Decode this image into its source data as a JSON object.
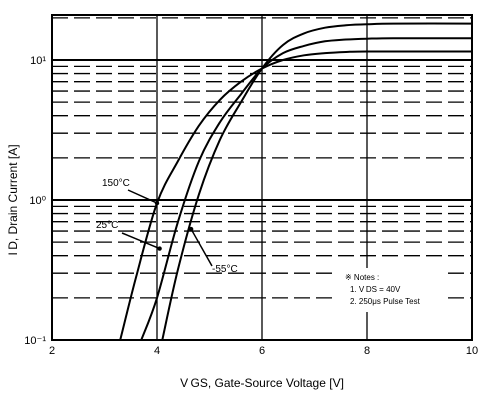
{
  "chart_data": {
    "type": "line",
    "xlabel": "V GS, Gate-Source Voltage [V]",
    "ylabel": "I D, Drain Current [A]",
    "xlim": [
      2,
      10
    ],
    "ylim": [
      0.1,
      25
    ],
    "yscale": "log",
    "grid": true,
    "x_ticks": [
      "2",
      "4",
      "6",
      "8",
      "10"
    ],
    "y_ticks": [
      "10⁻¹",
      "10⁰",
      "10¹"
    ],
    "series": [
      {
        "name": "150°C",
        "x": [
          3.3,
          3.6,
          4.0,
          4.4,
          4.8,
          5.2,
          5.6,
          6.0,
          6.4,
          6.8,
          7.2,
          7.6,
          8.0,
          10.0
        ],
        "y": [
          0.1,
          0.28,
          0.95,
          1.9,
          3.4,
          5.2,
          7.0,
          8.7,
          10.0,
          10.8,
          11.2,
          11.4,
          11.5,
          11.5
        ]
      },
      {
        "name": "25°C",
        "x": [
          3.7,
          4.0,
          4.4,
          4.8,
          5.2,
          5.6,
          6.0,
          6.4,
          6.8,
          7.2,
          7.6,
          8.0,
          8.5,
          10.0
        ],
        "y": [
          0.1,
          0.2,
          0.7,
          1.9,
          3.6,
          5.7,
          8.7,
          11.2,
          12.6,
          13.6,
          14.0,
          14.2,
          14.3,
          14.3
        ]
      },
      {
        "name": "-55°C",
        "x": [
          4.1,
          4.4,
          4.8,
          5.2,
          5.6,
          6.0,
          6.4,
          6.8,
          7.2,
          7.6,
          8.0,
          8.5,
          10.0
        ],
        "y": [
          0.1,
          0.32,
          1.1,
          2.7,
          5.0,
          8.7,
          12.8,
          15.5,
          17.0,
          17.7,
          18.0,
          18.2,
          18.2
        ]
      }
    ],
    "annotations": [
      {
        "text": "150°C",
        "x": 4.0,
        "y": 0.95
      },
      {
        "text": "25°C",
        "x": 4.05,
        "y": 0.45
      },
      {
        "text": "-55°C",
        "x": 4.65,
        "y": 0.62
      }
    ],
    "notes": {
      "title": "※ Notes :",
      "line1": "1. V DS = 40V",
      "line2": "2. 250μs Pulse Test"
    }
  }
}
